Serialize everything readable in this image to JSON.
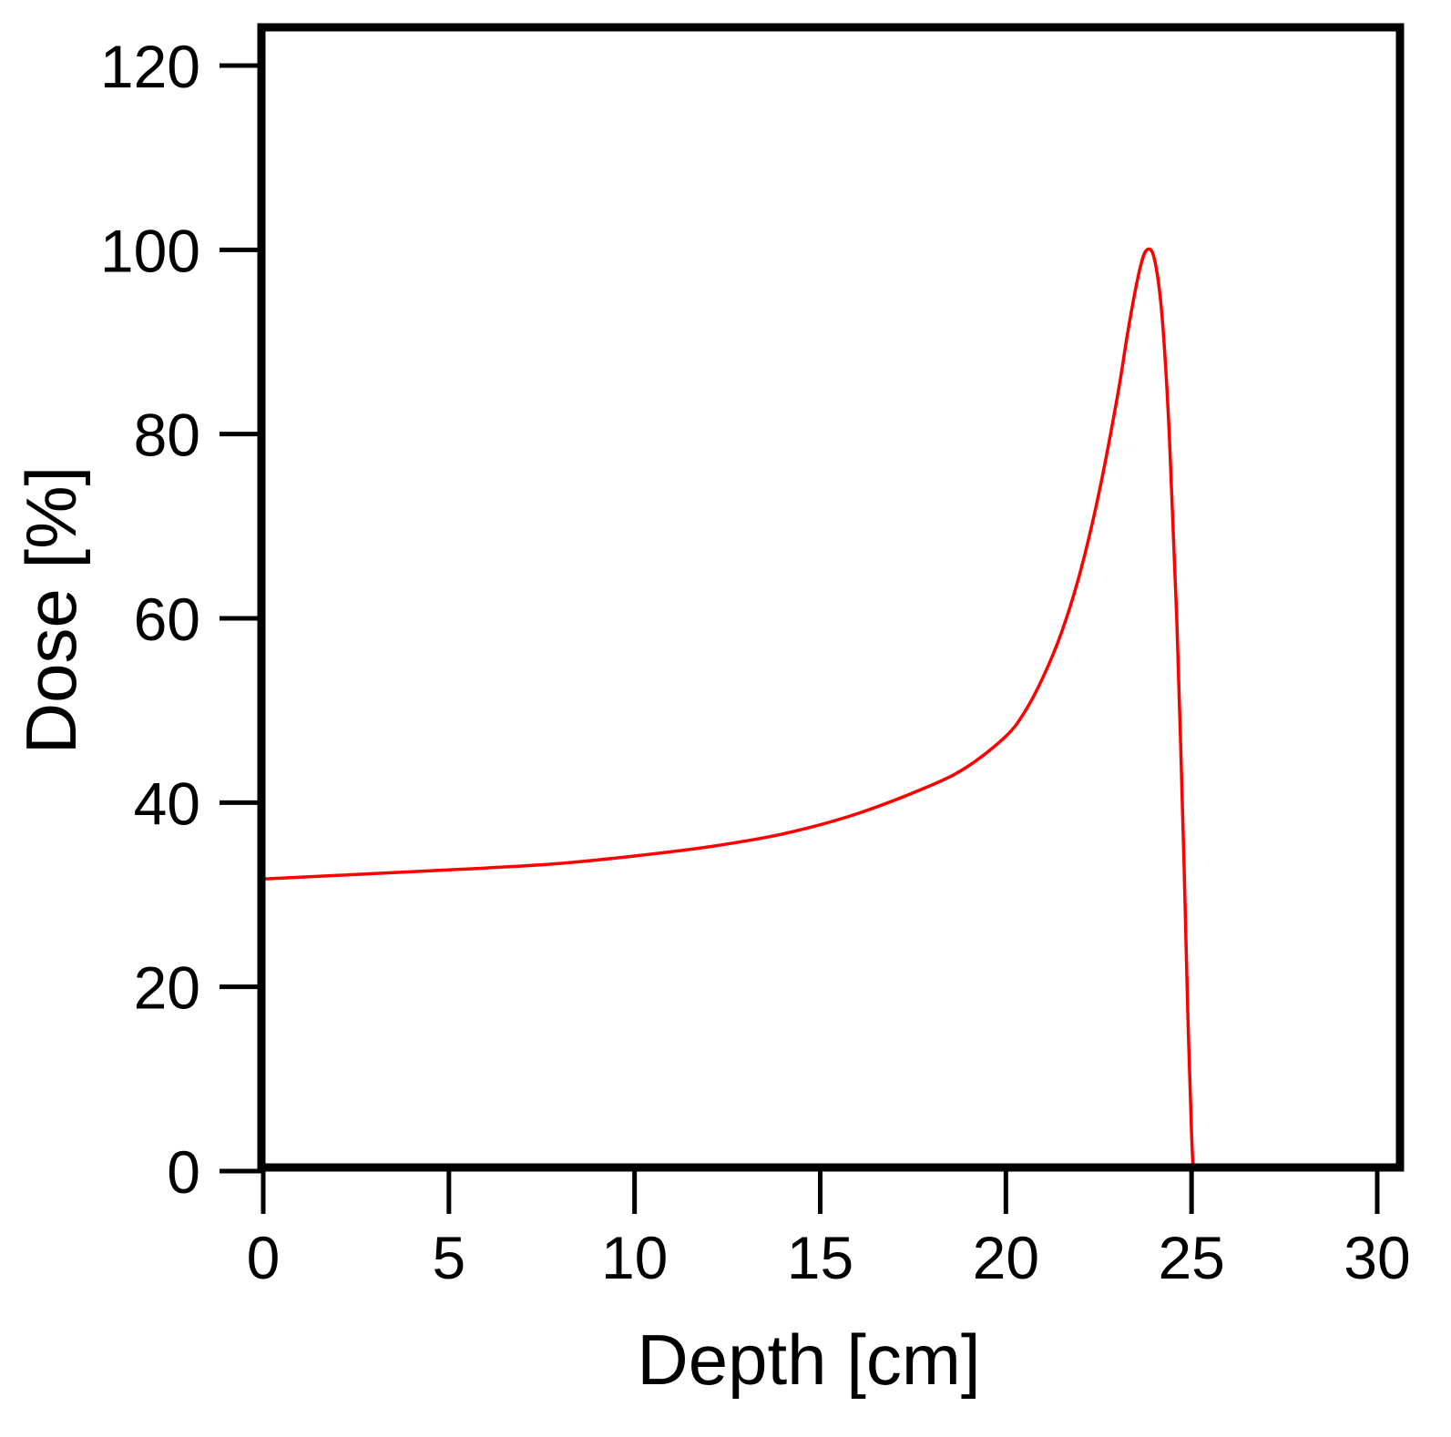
{
  "chart_data": {
    "type": "line",
    "xlabel": "Depth [cm]",
    "ylabel": "Dose [%]",
    "xlim": [
      0,
      30
    ],
    "ylim": [
      0,
      120
    ],
    "xticks": [
      0,
      5,
      10,
      15,
      20,
      25,
      30
    ],
    "yticks": [
      0,
      20,
      40,
      60,
      80,
      100,
      120
    ],
    "xtick_labels": [
      "0",
      "5",
      "10",
      "15",
      "20",
      "25",
      "30"
    ],
    "ytick_labels": [
      "0",
      "20",
      "40",
      "60",
      "80",
      "100",
      "120"
    ],
    "grid": false,
    "series": [
      {
        "color": "#ff0000",
        "x": [
          0,
          2,
          4,
          6,
          8,
          10,
          12,
          14,
          16,
          18,
          19,
          20,
          20.5,
          21,
          21.5,
          22,
          22.5,
          23,
          23.3,
          23.6,
          23.8,
          24.0,
          24.2,
          24.4,
          24.6,
          24.8,
          24.9,
          25.0,
          25.05
        ],
        "y": [
          31.7,
          32.1,
          32.5,
          32.9,
          33.4,
          34.2,
          35.2,
          36.6,
          38.8,
          41.9,
          44.0,
          47.2,
          49.8,
          53.6,
          58.5,
          65.0,
          73.5,
          84.0,
          91.5,
          97.8,
          100.0,
          99.0,
          93.0,
          80.0,
          60.0,
          33.0,
          17.0,
          4.0,
          0.0
        ]
      }
    ]
  }
}
